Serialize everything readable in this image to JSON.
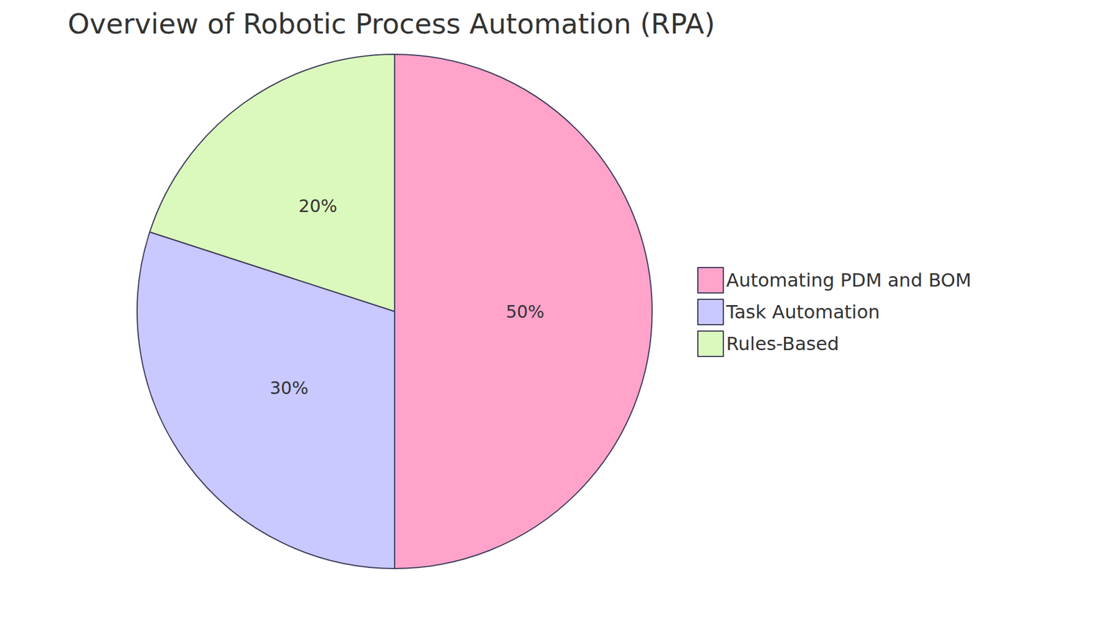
{
  "chart_data": {
    "type": "pie",
    "title": "Overview of Robotic Process Automation (RPA)",
    "categories": [
      "Automating PDM and BOM",
      "Task Automation",
      "Rules-Based"
    ],
    "values": [
      50,
      30,
      20
    ],
    "value_labels": [
      "50%",
      "30%",
      "20%"
    ],
    "colors": [
      "#ffa3cb",
      "#c9c8ff",
      "#dbf9bc"
    ],
    "legend": "right",
    "data_labels": true
  }
}
